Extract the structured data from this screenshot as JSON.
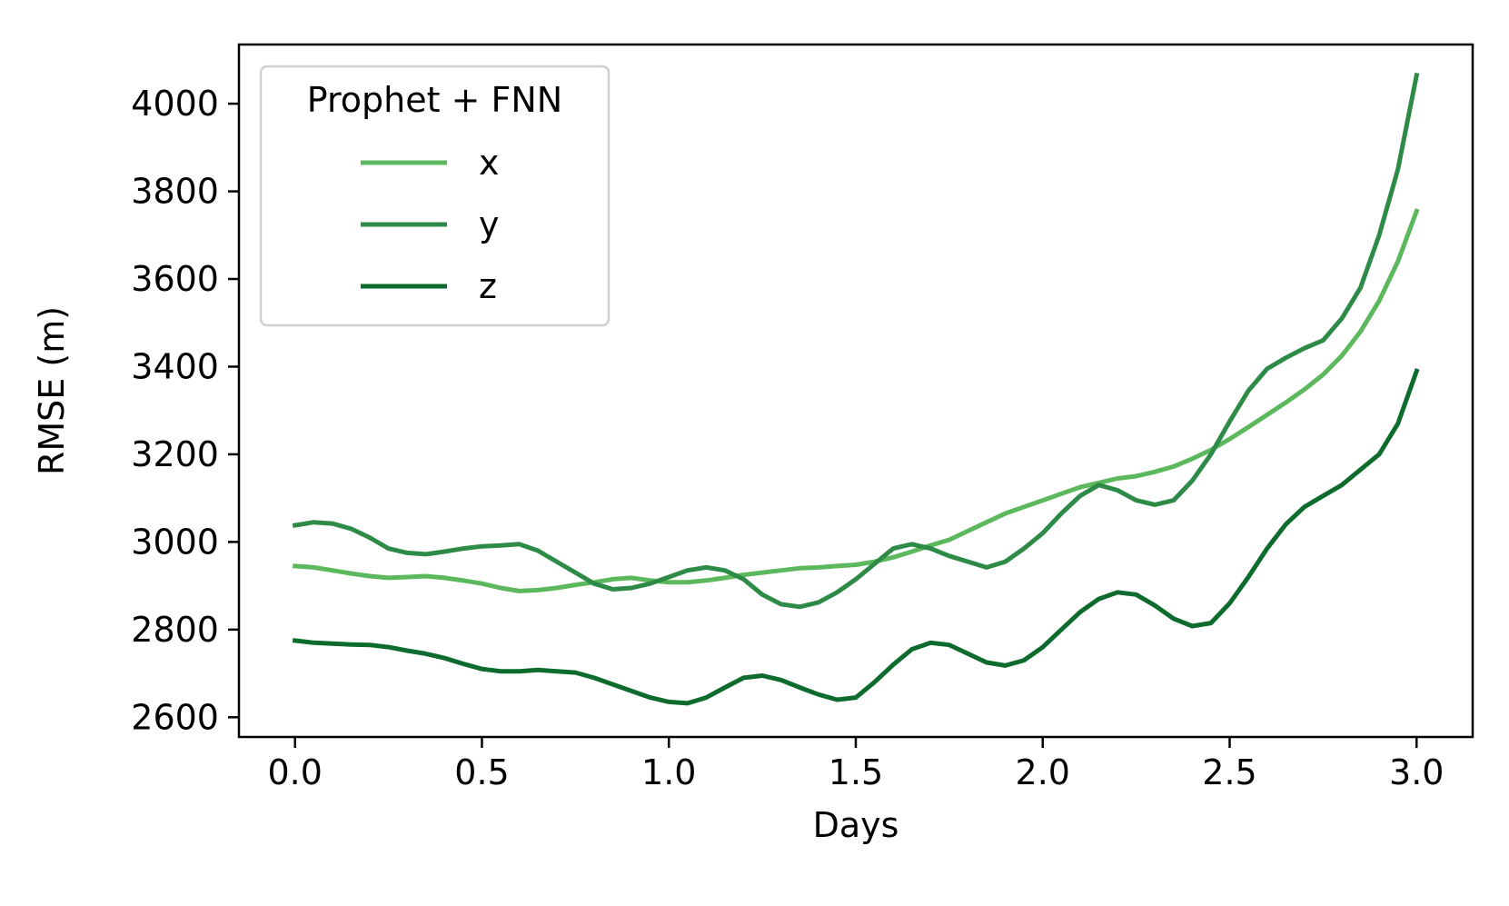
{
  "chart_data": {
    "type": "line",
    "title": "",
    "xlabel": "Days",
    "ylabel": "RMSE (m)",
    "xlim": [
      -0.15,
      3.15
    ],
    "ylim": [
      2555,
      4135
    ],
    "xticks": [
      0.0,
      0.5,
      1.0,
      1.5,
      2.0,
      2.5,
      3.0
    ],
    "xtick_labels": [
      "0.0",
      "0.5",
      "1.0",
      "1.5",
      "2.0",
      "2.5",
      "3.0"
    ],
    "yticks": [
      2600,
      2800,
      3000,
      3200,
      3400,
      3600,
      3800,
      4000
    ],
    "ytick_labels": [
      "2600",
      "2800",
      "3000",
      "3200",
      "3400",
      "3600",
      "3800",
      "4000"
    ],
    "grid": false,
    "legend": {
      "title": "Prophet + FNN",
      "position": "top-left"
    },
    "series": [
      {
        "name": "x",
        "color": "#5cb85c",
        "x": [
          0.0,
          0.05,
          0.1,
          0.15,
          0.2,
          0.25,
          0.3,
          0.35,
          0.4,
          0.45,
          0.5,
          0.55,
          0.6,
          0.65,
          0.7,
          0.75,
          0.8,
          0.85,
          0.9,
          0.95,
          1.0,
          1.05,
          1.1,
          1.15,
          1.2,
          1.25,
          1.3,
          1.35,
          1.4,
          1.45,
          1.5,
          1.55,
          1.6,
          1.65,
          1.7,
          1.75,
          1.8,
          1.85,
          1.9,
          1.95,
          2.0,
          2.05,
          2.1,
          2.15,
          2.2,
          2.25,
          2.3,
          2.35,
          2.4,
          2.45,
          2.5,
          2.55,
          2.6,
          2.65,
          2.7,
          2.75,
          2.8,
          2.85,
          2.9,
          2.95,
          3.0
        ],
        "y": [
          2945,
          2942,
          2935,
          2928,
          2922,
          2918,
          2920,
          2922,
          2918,
          2912,
          2905,
          2895,
          2888,
          2890,
          2895,
          2902,
          2908,
          2915,
          2918,
          2912,
          2908,
          2908,
          2912,
          2918,
          2925,
          2930,
          2935,
          2940,
          2942,
          2945,
          2948,
          2955,
          2965,
          2978,
          2992,
          3005,
          3025,
          3045,
          3065,
          3080,
          3095,
          3110,
          3125,
          3135,
          3145,
          3150,
          3160,
          3172,
          3190,
          3210,
          3235,
          3262,
          3290,
          3318,
          3348,
          3382,
          3425,
          3480,
          3550,
          3640,
          3755
        ]
      },
      {
        "name": "y",
        "color": "#2e8b47",
        "x": [
          0.0,
          0.05,
          0.1,
          0.15,
          0.2,
          0.25,
          0.3,
          0.35,
          0.4,
          0.45,
          0.5,
          0.55,
          0.6,
          0.65,
          0.7,
          0.75,
          0.8,
          0.85,
          0.9,
          0.95,
          1.0,
          1.05,
          1.1,
          1.15,
          1.2,
          1.25,
          1.3,
          1.35,
          1.4,
          1.45,
          1.5,
          1.55,
          1.6,
          1.65,
          1.7,
          1.75,
          1.8,
          1.85,
          1.9,
          1.95,
          2.0,
          2.05,
          2.1,
          2.15,
          2.2,
          2.25,
          2.3,
          2.35,
          2.4,
          2.45,
          2.5,
          2.55,
          2.6,
          2.65,
          2.7,
          2.75,
          2.8,
          2.85,
          2.9,
          2.95,
          3.0
        ],
        "y": [
          3038,
          3045,
          3042,
          3030,
          3010,
          2985,
          2975,
          2972,
          2978,
          2985,
          2990,
          2992,
          2995,
          2980,
          2955,
          2930,
          2905,
          2892,
          2895,
          2905,
          2920,
          2935,
          2942,
          2935,
          2915,
          2880,
          2858,
          2852,
          2862,
          2885,
          2915,
          2950,
          2985,
          2995,
          2985,
          2968,
          2955,
          2942,
          2955,
          2985,
          3020,
          3065,
          3105,
          3130,
          3118,
          3095,
          3085,
          3095,
          3140,
          3200,
          3275,
          3345,
          3395,
          3420,
          3442,
          3460,
          3510,
          3580,
          3700,
          3850,
          4065
        ]
      },
      {
        "name": "z",
        "color": "#0d6b2e",
        "x": [
          0.0,
          0.05,
          0.1,
          0.15,
          0.2,
          0.25,
          0.3,
          0.35,
          0.4,
          0.45,
          0.5,
          0.55,
          0.6,
          0.65,
          0.7,
          0.75,
          0.8,
          0.85,
          0.9,
          0.95,
          1.0,
          1.05,
          1.1,
          1.15,
          1.2,
          1.25,
          1.3,
          1.35,
          1.4,
          1.45,
          1.5,
          1.55,
          1.6,
          1.65,
          1.7,
          1.75,
          1.8,
          1.85,
          1.9,
          1.95,
          2.0,
          2.05,
          2.1,
          2.15,
          2.2,
          2.25,
          2.3,
          2.35,
          2.4,
          2.45,
          2.5,
          2.55,
          2.6,
          2.65,
          2.7,
          2.75,
          2.8,
          2.85,
          2.9,
          2.95,
          3.0
        ],
        "y": [
          2775,
          2770,
          2768,
          2766,
          2765,
          2760,
          2752,
          2745,
          2735,
          2722,
          2710,
          2705,
          2705,
          2708,
          2705,
          2702,
          2690,
          2675,
          2660,
          2645,
          2635,
          2632,
          2645,
          2668,
          2690,
          2695,
          2685,
          2668,
          2652,
          2640,
          2645,
          2680,
          2720,
          2755,
          2770,
          2765,
          2745,
          2725,
          2718,
          2730,
          2760,
          2800,
          2840,
          2870,
          2885,
          2880,
          2855,
          2825,
          2808,
          2815,
          2860,
          2920,
          2985,
          3040,
          3080,
          3105,
          3130,
          3165,
          3200,
          3270,
          3390
        ]
      }
    ]
  }
}
